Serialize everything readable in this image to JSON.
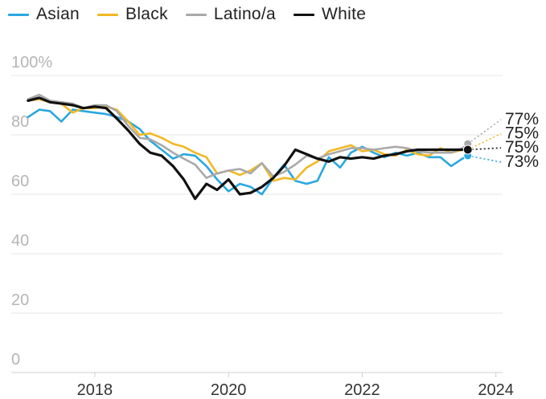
{
  "chart_data": {
    "type": "line",
    "title": "",
    "xlabel": "",
    "ylabel": "",
    "xlim": [
      2016.75,
      2024.1
    ],
    "ylim": [
      0,
      100
    ],
    "y_ticks": [
      {
        "value": 100,
        "label": "100%"
      },
      {
        "value": 80,
        "label": "80"
      },
      {
        "value": 60,
        "label": "60"
      },
      {
        "value": 40,
        "label": "40"
      },
      {
        "value": 20,
        "label": "20"
      },
      {
        "value": 0,
        "label": "0"
      }
    ],
    "x_ticks": [
      {
        "value": 2018,
        "label": "2018"
      },
      {
        "value": 2020,
        "label": "2020"
      },
      {
        "value": 2022,
        "label": "2022"
      },
      {
        "value": 2024,
        "label": "2024"
      }
    ],
    "grid": "horizontal",
    "legend_position": "top",
    "series": [
      {
        "name": "Asian",
        "color": "#29a8e0",
        "end_label": "73%",
        "values": [
          [
            2017.0,
            86
          ],
          [
            2017.17,
            88.5
          ],
          [
            2017.33,
            88
          ],
          [
            2017.5,
            84.5
          ],
          [
            2017.67,
            88.5
          ],
          [
            2017.83,
            88
          ],
          [
            2018.0,
            87.5
          ],
          [
            2018.17,
            87
          ],
          [
            2018.33,
            86
          ],
          [
            2018.5,
            84.5
          ],
          [
            2018.67,
            82
          ],
          [
            2018.83,
            78
          ],
          [
            2019.0,
            75
          ],
          [
            2019.17,
            72
          ],
          [
            2019.33,
            73.5
          ],
          [
            2019.5,
            73
          ],
          [
            2019.67,
            69.5
          ],
          [
            2019.83,
            65
          ],
          [
            2020.0,
            61
          ],
          [
            2020.17,
            63.5
          ],
          [
            2020.33,
            62.5
          ],
          [
            2020.5,
            60
          ],
          [
            2020.67,
            65.5
          ],
          [
            2020.83,
            70
          ],
          [
            2021.0,
            64.5
          ],
          [
            2021.17,
            63.5
          ],
          [
            2021.33,
            64.5
          ],
          [
            2021.5,
            72.5
          ],
          [
            2021.67,
            69
          ],
          [
            2021.83,
            74
          ],
          [
            2022.0,
            76
          ],
          [
            2022.17,
            74
          ],
          [
            2022.33,
            72.5
          ],
          [
            2022.5,
            74
          ],
          [
            2022.67,
            73
          ],
          [
            2022.83,
            74
          ],
          [
            2023.0,
            72.5
          ],
          [
            2023.17,
            72.5
          ],
          [
            2023.33,
            69.5
          ],
          [
            2023.5,
            72
          ],
          [
            2023.58,
            73
          ]
        ]
      },
      {
        "name": "Black",
        "color": "#f2b824",
        "end_label": "75%",
        "values": [
          [
            2017.0,
            91.5
          ],
          [
            2017.17,
            92
          ],
          [
            2017.33,
            91
          ],
          [
            2017.5,
            90.5
          ],
          [
            2017.67,
            87.5
          ],
          [
            2017.83,
            89
          ],
          [
            2018.0,
            89
          ],
          [
            2018.17,
            89.5
          ],
          [
            2018.33,
            88.5
          ],
          [
            2018.5,
            84.5
          ],
          [
            2018.67,
            80
          ],
          [
            2018.83,
            80.5
          ],
          [
            2019.0,
            79
          ],
          [
            2019.17,
            77
          ],
          [
            2019.33,
            76
          ],
          [
            2019.5,
            74
          ],
          [
            2019.67,
            72.5
          ],
          [
            2019.83,
            67
          ],
          [
            2020.0,
            68
          ],
          [
            2020.17,
            66.5
          ],
          [
            2020.33,
            68
          ],
          [
            2020.5,
            70.5
          ],
          [
            2020.67,
            64.5
          ],
          [
            2020.83,
            65.5
          ],
          [
            2021.0,
            65
          ],
          [
            2021.17,
            69
          ],
          [
            2021.33,
            71
          ],
          [
            2021.5,
            74.5
          ],
          [
            2021.67,
            75.5
          ],
          [
            2021.83,
            76.5
          ],
          [
            2022.0,
            74.5
          ],
          [
            2022.17,
            75
          ],
          [
            2022.33,
            73.5
          ],
          [
            2022.5,
            73
          ],
          [
            2022.67,
            75
          ],
          [
            2022.83,
            73.5
          ],
          [
            2023.0,
            73
          ],
          [
            2023.17,
            75.5
          ],
          [
            2023.33,
            74
          ],
          [
            2023.5,
            75
          ],
          [
            2023.58,
            75
          ]
        ]
      },
      {
        "name": "Latino/a",
        "color": "#a9a9a9",
        "end_label": "77%",
        "values": [
          [
            2017.0,
            92
          ],
          [
            2017.17,
            93.5
          ],
          [
            2017.33,
            91.5
          ],
          [
            2017.5,
            91
          ],
          [
            2017.67,
            90.5
          ],
          [
            2017.83,
            89
          ],
          [
            2018.0,
            90
          ],
          [
            2018.17,
            90
          ],
          [
            2018.33,
            88
          ],
          [
            2018.5,
            83
          ],
          [
            2018.67,
            79
          ],
          [
            2018.83,
            78.5
          ],
          [
            2019.0,
            76.5
          ],
          [
            2019.17,
            74
          ],
          [
            2019.33,
            72
          ],
          [
            2019.5,
            70
          ],
          [
            2019.67,
            65.5
          ],
          [
            2019.83,
            67
          ],
          [
            2020.0,
            68
          ],
          [
            2020.17,
            68.5
          ],
          [
            2020.33,
            67
          ],
          [
            2020.5,
            70.5
          ],
          [
            2020.67,
            66
          ],
          [
            2020.83,
            67.5
          ],
          [
            2021.0,
            70
          ],
          [
            2021.17,
            73
          ],
          [
            2021.33,
            72
          ],
          [
            2021.5,
            73.5
          ],
          [
            2021.67,
            74.5
          ],
          [
            2021.83,
            75.5
          ],
          [
            2022.0,
            75.5
          ],
          [
            2022.17,
            75
          ],
          [
            2022.33,
            75.5
          ],
          [
            2022.5,
            76
          ],
          [
            2022.67,
            75.5
          ],
          [
            2022.83,
            74.5
          ],
          [
            2023.0,
            74
          ],
          [
            2023.17,
            74
          ],
          [
            2023.33,
            74
          ],
          [
            2023.5,
            75.5
          ],
          [
            2023.58,
            77
          ]
        ]
      },
      {
        "name": "White",
        "color": "#111111",
        "end_label": "75%",
        "values": [
          [
            2017.0,
            91.5
          ],
          [
            2017.17,
            92.5
          ],
          [
            2017.33,
            91
          ],
          [
            2017.5,
            90.5
          ],
          [
            2017.67,
            90
          ],
          [
            2017.83,
            89
          ],
          [
            2018.0,
            89.5
          ],
          [
            2018.17,
            89
          ],
          [
            2018.33,
            85.5
          ],
          [
            2018.5,
            81.5
          ],
          [
            2018.67,
            77
          ],
          [
            2018.83,
            74
          ],
          [
            2019.0,
            73
          ],
          [
            2019.17,
            69.5
          ],
          [
            2019.33,
            65
          ],
          [
            2019.5,
            58.5
          ],
          [
            2019.67,
            63.5
          ],
          [
            2019.83,
            61.5
          ],
          [
            2020.0,
            65
          ],
          [
            2020.17,
            60
          ],
          [
            2020.33,
            60.5
          ],
          [
            2020.5,
            62.5
          ],
          [
            2020.67,
            65.5
          ],
          [
            2020.83,
            69.5
          ],
          [
            2021.0,
            75
          ],
          [
            2021.17,
            73.5
          ],
          [
            2021.33,
            72
          ],
          [
            2021.5,
            71
          ],
          [
            2021.67,
            72.5
          ],
          [
            2021.83,
            72
          ],
          [
            2022.0,
            72.5
          ],
          [
            2022.17,
            72
          ],
          [
            2022.33,
            73
          ],
          [
            2022.5,
            73.5
          ],
          [
            2022.67,
            74.5
          ],
          [
            2022.83,
            75
          ],
          [
            2023.0,
            75
          ],
          [
            2023.17,
            75
          ],
          [
            2023.33,
            75
          ],
          [
            2023.5,
            75
          ],
          [
            2023.58,
            75
          ]
        ]
      }
    ]
  }
}
